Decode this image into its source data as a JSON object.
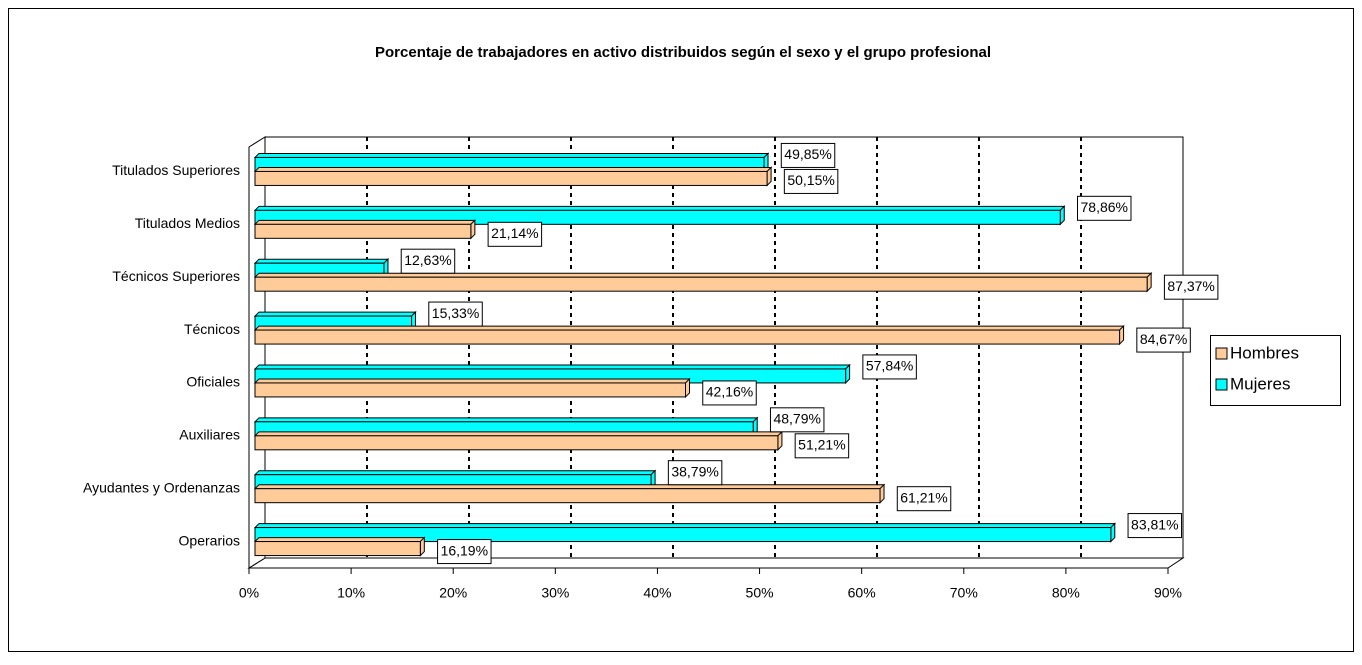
{
  "chart_data": {
    "type": "bar",
    "orientation": "horizontal",
    "title": "Porcentaje de trabajadores en activo distribuidos según el sexo y el grupo profesional",
    "categories": [
      "Titulados Superiores",
      "Titulados Medios",
      "Técnicos Superiores",
      "Técnicos",
      "Oficiales",
      "Auxiliares",
      "Ayudantes y Ordenanzas",
      "Operarios"
    ],
    "series": [
      {
        "name": "Hombres",
        "color": "#FFCC99",
        "values": [
          50.15,
          21.14,
          87.37,
          84.67,
          42.16,
          51.21,
          61.21,
          16.19
        ],
        "value_labels": [
          "50,15%",
          "21,14%",
          "87,37%",
          "84,67%",
          "42,16%",
          "51,21%",
          "61,21%",
          "16,19%"
        ]
      },
      {
        "name": "Mujeres",
        "color": "#00FFFF",
        "values": [
          49.85,
          78.86,
          12.63,
          15.33,
          57.84,
          48.79,
          38.79,
          83.81
        ],
        "value_labels": [
          "49,85%",
          "78,86%",
          "12,63%",
          "15,33%",
          "57,84%",
          "48,79%",
          "38,79%",
          "83,81%"
        ]
      }
    ],
    "xlim": [
      0,
      90
    ],
    "xticks": [
      {
        "value": 0,
        "label": "0%"
      },
      {
        "value": 10,
        "label": "10%"
      },
      {
        "value": 20,
        "label": "20%"
      },
      {
        "value": 30,
        "label": "30%"
      },
      {
        "value": 40,
        "label": "40%"
      },
      {
        "value": 50,
        "label": "50%"
      },
      {
        "value": 60,
        "label": "60%"
      },
      {
        "value": 70,
        "label": "70%"
      },
      {
        "value": 80,
        "label": "80%"
      },
      {
        "value": 90,
        "label": "90%"
      }
    ],
    "grid": true,
    "legend": "right"
  }
}
